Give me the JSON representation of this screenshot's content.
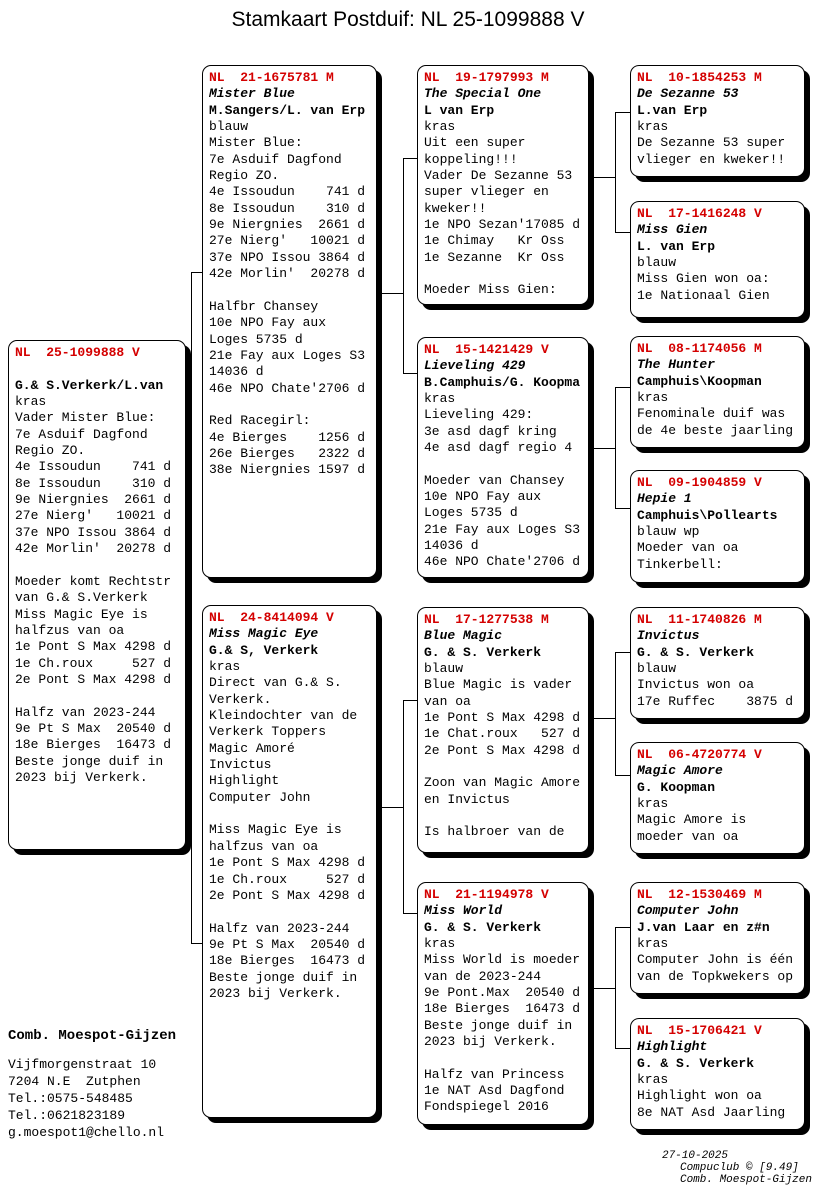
{
  "title": "Stamkaart Postduif: NL  25-1099888 V",
  "colors": {
    "ring_red": "#d40000",
    "text": "#000000",
    "box_bg": "#ffffff",
    "line": "#000000"
  },
  "boxes": [
    {
      "id": "subject",
      "ring": "NL  25-1099888 V",
      "name": "",
      "breeder": "G.& S.Verkerk/L.van",
      "body": [
        "kras",
        "Vader Mister Blue:",
        "7e Asduif Dagfond",
        "Regio ZO.",
        "4e Issoudun    741 d",
        "8e Issoudun    310 d",
        "9e Niergnies  2661 d",
        "27e Nierg'   10021 d",
        "37e NPO Issou 3864 d",
        "42e Morlin'  20278 d",
        "",
        "Moeder komt Rechtstr",
        "van G.& S.Verkerk",
        "Miss Magic Eye is",
        "halfzus van oa",
        "1e Pont S Max 4298 d",
        "1e Ch.roux     527 d",
        "2e Pont S Max 4298 d",
        "",
        "Halfz van 2023-244",
        "9e Pt S Max  20540 d",
        "18e Bierges  16473 d",
        "Beste jonge duif in",
        "2023 bij Verkerk."
      ]
    },
    {
      "id": "c2b1",
      "ring": "NL  21-1675781 M",
      "name": "Mister Blue",
      "breeder": "M.Sangers/L. van Erp",
      "body": [
        "blauw",
        "Mister Blue:",
        "7e Asduif Dagfond",
        "Regio ZO.",
        "4e Issoudun    741 d",
        "8e Issoudun    310 d",
        "9e Niergnies  2661 d",
        "27e Nierg'   10021 d",
        "37e NPO Issou 3864 d",
        "42e Morlin'  20278 d",
        "",
        "Halfbr Chansey",
        "10e NPO Fay aux",
        "Loges 5735 d",
        "21e Fay aux Loges S3",
        "14036 d",
        "46e NPO Chate'2706 d",
        "",
        "Red Racegirl:",
        "4e Bierges    1256 d",
        "26e Bierges   2322 d",
        "38e Niergnies 1597 d"
      ]
    },
    {
      "id": "c2b2",
      "ring": "NL  24-8414094 V",
      "name": "Miss Magic Eye",
      "breeder": "G.& S, Verkerk",
      "body": [
        "kras",
        "Direct van G.& S.",
        "Verkerk.",
        "Kleindochter van de",
        "Verkerk Toppers",
        "Magic Amoré",
        "Invictus",
        "Highlight",
        "Computer John",
        "",
        "Miss Magic Eye is",
        "halfzus van oa",
        "1e Pont S Max 4298 d",
        "1e Ch.roux     527 d",
        "2e Pont S Max 4298 d",
        "",
        "Halfz van 2023-244",
        "9e Pt S Max  20540 d",
        "18e Bierges  16473 d",
        "Beste jonge duif in",
        "2023 bij Verkerk."
      ]
    },
    {
      "id": "c3b1",
      "ring": "NL  19-1797993 M",
      "name": "The Special One",
      "breeder": "L van Erp",
      "body": [
        "kras",
        "Uit een super",
        "koppeling!!!",
        "Vader De Sezanne 53",
        "super vlieger en",
        "kweker!!",
        "1e NPO Sezan'17085 d",
        "1e Chimay   Kr Oss",
        "1e Sezanne  Kr Oss",
        "",
        "Moeder Miss Gien:"
      ]
    },
    {
      "id": "c3b2",
      "ring": "NL  15-1421429 V",
      "name": "Lieveling 429",
      "breeder": "B.Camphuis/G. Koopma",
      "body": [
        "kras",
        "Lieveling 429:",
        "3e asd dagf kring",
        "4e asd dagf regio 4",
        "",
        "Moeder van Chansey",
        "10e NPO Fay aux",
        "Loges 5735 d",
        "21e Fay aux Loges S3",
        "14036 d",
        "46e NPO Chate'2706 d"
      ]
    },
    {
      "id": "c3b3",
      "ring": "NL  17-1277538 M",
      "name": "Blue Magic",
      "breeder": "G. & S. Verkerk",
      "body": [
        "blauw",
        "Blue Magic is vader",
        "van oa",
        "1e Pont S Max 4298 d",
        "1e Chat.roux   527 d",
        "2e Pont S Max 4298 d",
        "",
        "Zoon van Magic Amore",
        "en Invictus",
        "",
        "Is halbroer van de"
      ]
    },
    {
      "id": "c3b4",
      "ring": "NL  21-1194978 V",
      "name": "Miss World",
      "breeder": "G. & S. Verkerk",
      "body": [
        "kras",
        "Miss World is moeder",
        "van de 2023-244",
        "9e Pont.Max  20540 d",
        "18e Bierges  16473 d",
        "Beste jonge duif in",
        "2023 bij Verkerk.",
        "",
        "Halfz van Princess",
        "1e NAT Asd Dagfond",
        "Fondspiegel 2016"
      ]
    },
    {
      "id": "c4b1",
      "ring": "NL  10-1854253 M",
      "name": "De Sezanne 53",
      "breeder": "L.van Erp",
      "body": [
        "kras",
        "De Sezanne 53 super",
        "vlieger en kweker!!"
      ]
    },
    {
      "id": "c4b2",
      "ring": "NL  17-1416248 V",
      "name": "Miss Gien",
      "breeder": "L. van Erp",
      "body": [
        "blauw",
        "Miss Gien won oa:",
        "1e Nationaal Gien"
      ]
    },
    {
      "id": "c4b3",
      "ring": "NL  08-1174056 M",
      "name": "The Hunter",
      "breeder": "Camphuis\\Koopman",
      "body": [
        "kras",
        "Fenominale duif was",
        "de 4e beste jaarling"
      ]
    },
    {
      "id": "c4b4",
      "ring": "NL  09-1904859 V",
      "name": "Hepie 1",
      "breeder": "Camphuis\\Pollearts",
      "body": [
        "blauw wp",
        "Moeder van oa",
        "Tinkerbell:"
      ]
    },
    {
      "id": "c4b5",
      "ring": "NL  11-1740826 M",
      "name": "Invictus",
      "breeder": "G. & S. Verkerk",
      "body": [
        "blauw",
        "Invictus won oa",
        "17e Ruffec    3875 d"
      ]
    },
    {
      "id": "c4b6",
      "ring": "NL  06-4720774 V",
      "name": "Magic Amore",
      "breeder": "G. Koopman",
      "body": [
        "kras",
        "Magic Amore is",
        "moeder van oa"
      ]
    },
    {
      "id": "c4b7",
      "ring": "NL  12-1530469 M",
      "name": "Computer John",
      "breeder": "J.van Laar en z#n",
      "body": [
        "kras",
        "Computer John is één",
        "van de Topkwekers op"
      ]
    },
    {
      "id": "c4b8",
      "ring": "NL  15-1706421 V",
      "name": "Highlight",
      "breeder": "G. & S. Verkerk",
      "body": [
        "kras",
        "Highlight won oa",
        "8e NAT Asd Jaarling"
      ]
    }
  ],
  "owner": {
    "name": "Comb. Moespot-Gijzen",
    "address_lines": [
      "Vijfmorgenstraat 10",
      "7204 N.E  Zutphen",
      "Tel.:0575-548485",
      "Tel.:0621823189",
      "g.moespot1@chello.nl"
    ]
  },
  "footer": {
    "date": "27-10-2025",
    "software": "Compuclub © [9.49]",
    "owner": "Comb. Moespot-Gijzen"
  }
}
